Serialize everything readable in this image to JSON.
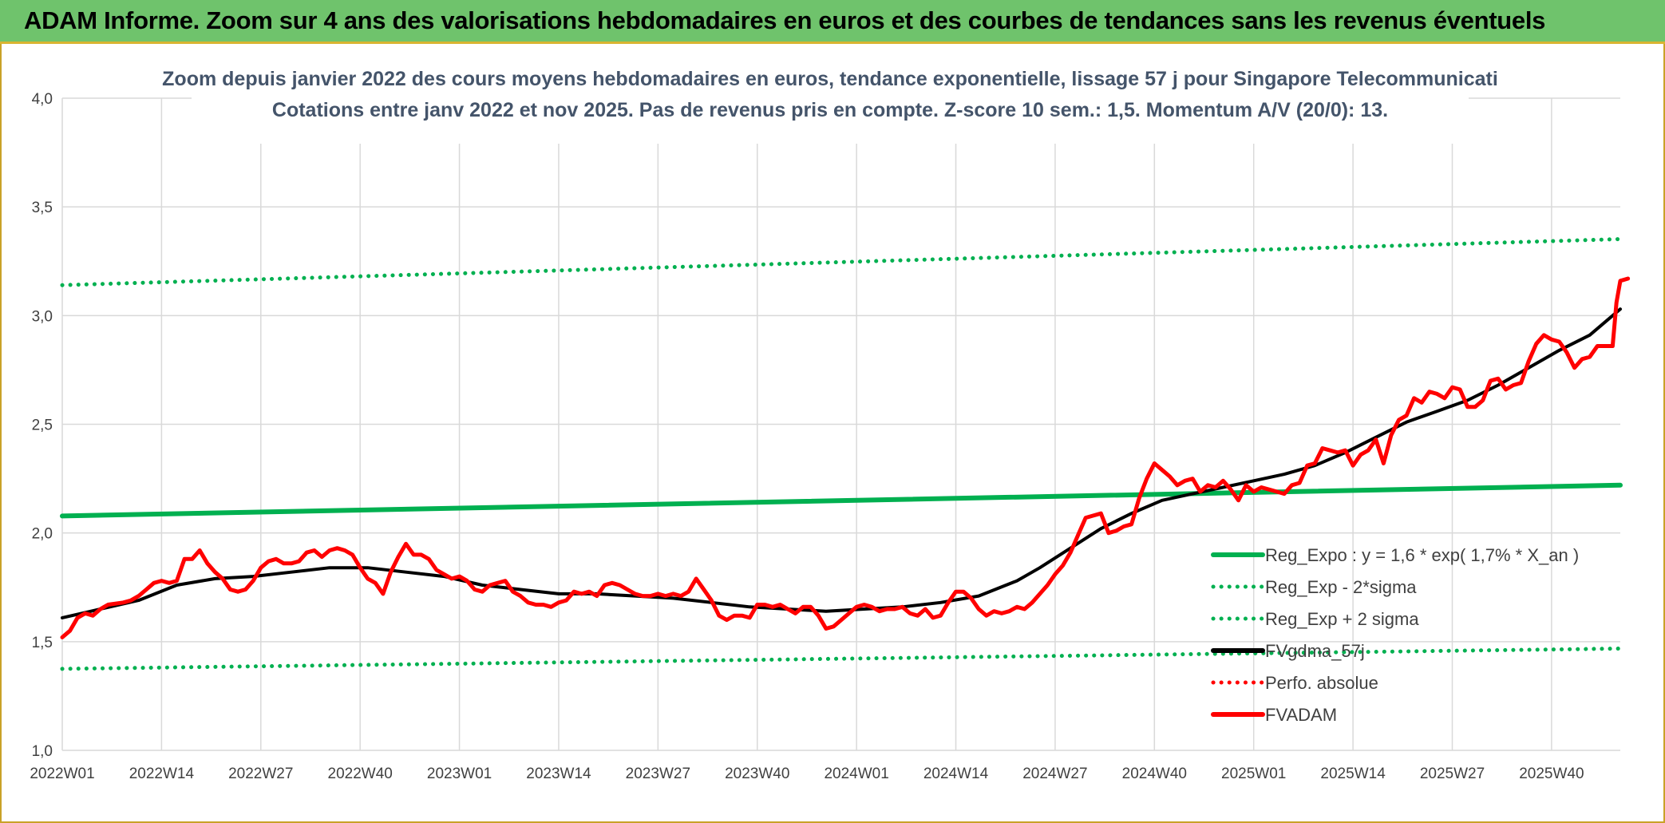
{
  "banner": {
    "title": "ADAM Informe. Zoom sur 4 ans des valorisations hebdomadaires en euros et des courbes de tendances sans les revenus éventuels"
  },
  "chart_data": {
    "type": "line",
    "title": "Zoom depuis janvier 2022 des cours moyens hebdomadaires en euros, tendance exponentielle, lissage 57 j pour Singapore Telecommunicati",
    "subtitle": "Cotations entre janv 2022 et nov 2025. Pas de revenus pris en compte. Z-score 10 sem.: 1,5. Momentum A/V (20/0): 13.",
    "ylim": [
      1.0,
      4.0
    ],
    "yticks": [
      "1,0",
      "1,5",
      "2,0",
      "2,5",
      "3,0",
      "3,5",
      "4,0"
    ],
    "ytick_values": [
      1.0,
      1.5,
      2.0,
      2.5,
      3.0,
      3.5,
      4.0
    ],
    "xticks": [
      "2022W01",
      "2022W14",
      "2022W27",
      "2022W40",
      "2023W01",
      "2023W14",
      "2023W27",
      "2023W40",
      "2024W01",
      "2024W14",
      "2024W27",
      "2024W40",
      "2025W01",
      "2025W14",
      "2025W27",
      "2025W40"
    ],
    "xtick_weeks": [
      0,
      13,
      26,
      39,
      52,
      65,
      78,
      91,
      104,
      117,
      130,
      143,
      156,
      169,
      182,
      195
    ],
    "x_week_range": [
      0,
      204
    ],
    "grid": true,
    "legend_position": "bottom-right",
    "series": [
      {
        "name": "Reg_Expo : y = 1,6 * exp( 1,7% *  X_an )",
        "color": "#00b050",
        "style": "solid",
        "points": [
          [
            0,
            2.078
          ],
          [
            204,
            2.22
          ]
        ]
      },
      {
        "name": "Reg_Exp - 2*sigma",
        "color": "#00b050",
        "style": "dotted",
        "points": [
          [
            0,
            1.375
          ],
          [
            204,
            1.468
          ]
        ]
      },
      {
        "name": "Reg_Exp + 2 sigma",
        "color": "#00b050",
        "style": "dotted",
        "points": [
          [
            0,
            3.14
          ],
          [
            204,
            3.352
          ]
        ]
      },
      {
        "name": "FVgdma_57j",
        "color": "#000000",
        "style": "solid",
        "points": [
          [
            0,
            1.61
          ],
          [
            5,
            1.65
          ],
          [
            10,
            1.69
          ],
          [
            15,
            1.76
          ],
          [
            20,
            1.79
          ],
          [
            25,
            1.8
          ],
          [
            30,
            1.82
          ],
          [
            35,
            1.84
          ],
          [
            40,
            1.84
          ],
          [
            45,
            1.82
          ],
          [
            50,
            1.8
          ],
          [
            55,
            1.76
          ],
          [
            60,
            1.74
          ],
          [
            65,
            1.72
          ],
          [
            70,
            1.72
          ],
          [
            75,
            1.71
          ],
          [
            80,
            1.7
          ],
          [
            85,
            1.68
          ],
          [
            90,
            1.66
          ],
          [
            95,
            1.65
          ],
          [
            100,
            1.64
          ],
          [
            105,
            1.65
          ],
          [
            110,
            1.66
          ],
          [
            115,
            1.68
          ],
          [
            120,
            1.71
          ],
          [
            125,
            1.78
          ],
          [
            128,
            1.84
          ],
          [
            132,
            1.93
          ],
          [
            136,
            2.02
          ],
          [
            140,
            2.09
          ],
          [
            144,
            2.15
          ],
          [
            148,
            2.18
          ],
          [
            152,
            2.21
          ],
          [
            156,
            2.24
          ],
          [
            160,
            2.27
          ],
          [
            164,
            2.31
          ],
          [
            168,
            2.37
          ],
          [
            172,
            2.44
          ],
          [
            176,
            2.51
          ],
          [
            180,
            2.56
          ],
          [
            184,
            2.61
          ],
          [
            188,
            2.68
          ],
          [
            192,
            2.76
          ],
          [
            196,
            2.84
          ],
          [
            200,
            2.91
          ],
          [
            204,
            3.03
          ]
        ]
      },
      {
        "name": "Perfo. absolue",
        "color": "#ff0000",
        "style": "dotted",
        "points": []
      },
      {
        "name": "FVADAM",
        "color": "#ff0000",
        "style": "solid",
        "points": [
          [
            0,
            1.52
          ],
          [
            1,
            1.55
          ],
          [
            2,
            1.61
          ],
          [
            3,
            1.63
          ],
          [
            4,
            1.62
          ],
          [
            5,
            1.65
          ],
          [
            6,
            1.67
          ],
          [
            8,
            1.68
          ],
          [
            9,
            1.69
          ],
          [
            10,
            1.71
          ],
          [
            11,
            1.74
          ],
          [
            12,
            1.77
          ],
          [
            13,
            1.78
          ],
          [
            14,
            1.77
          ],
          [
            15,
            1.78
          ],
          [
            16,
            1.88
          ],
          [
            17,
            1.88
          ],
          [
            18,
            1.92
          ],
          [
            19,
            1.86
          ],
          [
            20,
            1.82
          ],
          [
            21,
            1.79
          ],
          [
            22,
            1.74
          ],
          [
            23,
            1.73
          ],
          [
            24,
            1.74
          ],
          [
            25,
            1.78
          ],
          [
            26,
            1.84
          ],
          [
            27,
            1.87
          ],
          [
            28,
            1.88
          ],
          [
            29,
            1.86
          ],
          [
            30,
            1.86
          ],
          [
            31,
            1.87
          ],
          [
            32,
            1.91
          ],
          [
            33,
            1.92
          ],
          [
            34,
            1.89
          ],
          [
            35,
            1.92
          ],
          [
            36,
            1.93
          ],
          [
            37,
            1.92
          ],
          [
            38,
            1.9
          ],
          [
            39,
            1.84
          ],
          [
            40,
            1.79
          ],
          [
            41,
            1.77
          ],
          [
            42,
            1.72
          ],
          [
            43,
            1.82
          ],
          [
            44,
            1.89
          ],
          [
            45,
            1.95
          ],
          [
            46,
            1.9
          ],
          [
            47,
            1.9
          ],
          [
            48,
            1.88
          ],
          [
            49,
            1.83
          ],
          [
            50,
            1.81
          ],
          [
            51,
            1.79
          ],
          [
            52,
            1.8
          ],
          [
            53,
            1.78
          ],
          [
            54,
            1.74
          ],
          [
            55,
            1.73
          ],
          [
            56,
            1.76
          ],
          [
            57,
            1.77
          ],
          [
            58,
            1.78
          ],
          [
            59,
            1.73
          ],
          [
            60,
            1.71
          ],
          [
            61,
            1.68
          ],
          [
            62,
            1.67
          ],
          [
            63,
            1.67
          ],
          [
            64,
            1.66
          ],
          [
            65,
            1.68
          ],
          [
            66,
            1.69
          ],
          [
            67,
            1.73
          ],
          [
            68,
            1.72
          ],
          [
            69,
            1.73
          ],
          [
            70,
            1.71
          ],
          [
            71,
            1.76
          ],
          [
            72,
            1.77
          ],
          [
            73,
            1.76
          ],
          [
            74,
            1.74
          ],
          [
            75,
            1.72
          ],
          [
            76,
            1.71
          ],
          [
            77,
            1.71
          ],
          [
            78,
            1.72
          ],
          [
            79,
            1.71
          ],
          [
            80,
            1.72
          ],
          [
            81,
            1.71
          ],
          [
            82,
            1.73
          ],
          [
            83,
            1.79
          ],
          [
            84,
            1.74
          ],
          [
            85,
            1.69
          ],
          [
            86,
            1.62
          ],
          [
            87,
            1.6
          ],
          [
            88,
            1.62
          ],
          [
            89,
            1.62
          ],
          [
            90,
            1.61
          ],
          [
            91,
            1.67
          ],
          [
            92,
            1.67
          ],
          [
            93,
            1.66
          ],
          [
            94,
            1.67
          ],
          [
            95,
            1.65
          ],
          [
            96,
            1.63
          ],
          [
            97,
            1.66
          ],
          [
            98,
            1.66
          ],
          [
            99,
            1.62
          ],
          [
            100,
            1.56
          ],
          [
            101,
            1.57
          ],
          [
            102,
            1.6
          ],
          [
            103,
            1.63
          ],
          [
            104,
            1.66
          ],
          [
            105,
            1.67
          ],
          [
            106,
            1.66
          ],
          [
            107,
            1.64
          ],
          [
            108,
            1.65
          ],
          [
            109,
            1.65
          ],
          [
            110,
            1.66
          ],
          [
            111,
            1.63
          ],
          [
            112,
            1.62
          ],
          [
            113,
            1.65
          ],
          [
            114,
            1.61
          ],
          [
            115,
            1.62
          ],
          [
            116,
            1.68
          ],
          [
            117,
            1.73
          ],
          [
            118,
            1.73
          ],
          [
            119,
            1.7
          ],
          [
            120,
            1.65
          ],
          [
            121,
            1.62
          ],
          [
            122,
            1.64
          ],
          [
            123,
            1.63
          ],
          [
            124,
            1.64
          ],
          [
            125,
            1.66
          ],
          [
            126,
            1.65
          ],
          [
            127,
            1.68
          ],
          [
            128,
            1.72
          ],
          [
            129,
            1.76
          ],
          [
            130,
            1.81
          ],
          [
            131,
            1.85
          ],
          [
            132,
            1.91
          ],
          [
            133,
            1.99
          ],
          [
            134,
            2.07
          ],
          [
            135,
            2.08
          ],
          [
            136,
            2.09
          ],
          [
            137,
            2.0
          ],
          [
            138,
            2.01
          ],
          [
            139,
            2.03
          ],
          [
            140,
            2.04
          ],
          [
            141,
            2.16
          ],
          [
            142,
            2.25
          ],
          [
            143,
            2.32
          ],
          [
            144,
            2.29
          ],
          [
            145,
            2.26
          ],
          [
            146,
            2.22
          ],
          [
            147,
            2.24
          ],
          [
            148,
            2.25
          ],
          [
            149,
            2.19
          ],
          [
            150,
            2.22
          ],
          [
            151,
            2.21
          ],
          [
            152,
            2.24
          ],
          [
            153,
            2.2
          ],
          [
            154,
            2.15
          ],
          [
            155,
            2.22
          ],
          [
            156,
            2.19
          ],
          [
            157,
            2.21
          ],
          [
            158,
            2.2
          ],
          [
            159,
            2.19
          ],
          [
            160,
            2.18
          ],
          [
            161,
            2.22
          ],
          [
            162,
            2.23
          ],
          [
            163,
            2.31
          ],
          [
            164,
            2.32
          ],
          [
            165,
            2.39
          ],
          [
            166,
            2.38
          ],
          [
            167,
            2.37
          ],
          [
            168,
            2.38
          ],
          [
            169,
            2.31
          ],
          [
            170,
            2.36
          ],
          [
            171,
            2.38
          ],
          [
            172,
            2.43
          ],
          [
            173,
            2.32
          ],
          [
            174,
            2.45
          ],
          [
            175,
            2.52
          ],
          [
            176,
            2.54
          ],
          [
            177,
            2.62
          ],
          [
            178,
            2.6
          ],
          [
            179,
            2.65
          ],
          [
            180,
            2.64
          ],
          [
            181,
            2.62
          ],
          [
            182,
            2.67
          ],
          [
            183,
            2.66
          ],
          [
            184,
            2.58
          ],
          [
            185,
            2.58
          ],
          [
            186,
            2.61
          ],
          [
            187,
            2.7
          ],
          [
            188,
            2.71
          ],
          [
            189,
            2.66
          ],
          [
            190,
            2.68
          ],
          [
            191,
            2.69
          ],
          [
            192,
            2.79
          ],
          [
            193,
            2.87
          ],
          [
            194,
            2.91
          ],
          [
            195,
            2.89
          ],
          [
            196,
            2.88
          ],
          [
            197,
            2.83
          ],
          [
            198,
            2.76
          ],
          [
            199,
            2.8
          ],
          [
            200,
            2.81
          ],
          [
            201,
            2.86
          ],
          [
            202,
            2.86
          ],
          [
            203,
            2.86
          ],
          [
            203.5,
            3.06
          ],
          [
            204,
            3.16
          ],
          [
            205,
            3.17
          ]
        ]
      }
    ]
  }
}
